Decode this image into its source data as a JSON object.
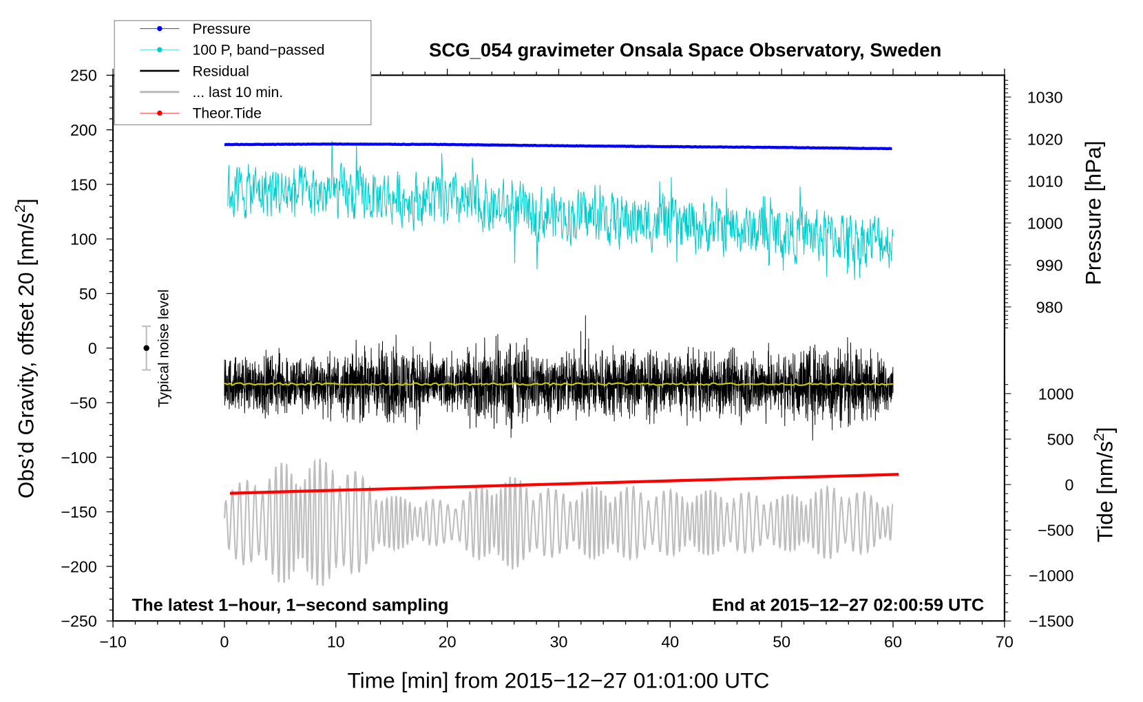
{
  "chart_data": {
    "type": "line",
    "title": "SCG_054 gravimeter Onsala Space Observatory, Sweden",
    "xlabel": "Time [min] from 2015−12−27 01:01:00 UTC",
    "ylabel": {
      "main": "Obs’d Gravity, offset 20 [nm/s",
      "sup": "2",
      "end": "]"
    },
    "y2label": "Pressure [hPa]",
    "y3label": {
      "main": "Tide [nm/s",
      "sup": "2",
      "end": "]"
    },
    "annotation_left": "The latest 1−hour, 1−second sampling",
    "annotation_right": "End at 2015−12−27 02:00:59 UTC",
    "noise_label": "Typical noise level",
    "noise_level": {
      "x": -7,
      "center": 0,
      "half_range": 20
    },
    "xlim": [
      -10,
      70
    ],
    "ylim": [
      -250,
      250
    ],
    "y2lim": [
      975,
      1035
    ],
    "y3lim": [
      -1500,
      1000
    ],
    "x_ticks": [
      "−10",
      "0",
      "10",
      "20",
      "30",
      "40",
      "50",
      "60",
      "70"
    ],
    "x_tick_values": [
      -10,
      0,
      10,
      20,
      30,
      40,
      50,
      60,
      70
    ],
    "y_ticks": [
      "250",
      "200",
      "150",
      "100",
      "50",
      "0",
      "−50",
      "−100",
      "−150",
      "−200",
      "−250"
    ],
    "y_tick_values": [
      250,
      200,
      150,
      100,
      50,
      0,
      -50,
      -100,
      -150,
      -200,
      -250
    ],
    "y2_ticks": [
      "1030",
      "1020",
      "1010",
      "1000",
      "990",
      "980"
    ],
    "y2_tick_values": [
      1030,
      1020,
      1010,
      1000,
      990,
      980
    ],
    "y3_ticks": [
      "1000",
      "500",
      "0",
      "−500",
      "−1000",
      "−1500"
    ],
    "y3_tick_values": [
      1000,
      500,
      0,
      -500,
      -1000,
      -1500
    ],
    "legend": {
      "placement": "top-left",
      "entries": [
        {
          "label": "Pressure",
          "color": "#0000ff",
          "marker": true
        },
        {
          "label": "100 P, band−passed",
          "color": "#00cccc",
          "marker": true
        },
        {
          "label": "Residual",
          "color": "#000000",
          "marker": false
        },
        {
          "label": "... last 10 min.",
          "color": "#bebebe",
          "marker": false
        },
        {
          "label": "Theor.Tide",
          "color": "#ff0000",
          "marker": true
        }
      ]
    },
    "series": [
      {
        "name": "Pressure",
        "axis": "y2",
        "color": "#0000ff",
        "x": [
          0,
          10,
          20,
          30,
          40,
          50,
          60
        ],
        "y": [
          1018.7,
          1018.8,
          1018.7,
          1018.4,
          1018.2,
          1018.0,
          1017.7
        ]
      },
      {
        "name": "100 P, band-passed",
        "axis": "y",
        "color": "#00cccc",
        "x": [
          0,
          10,
          20,
          30,
          40,
          50,
          60
        ],
        "y": [
          145,
          141,
          134,
          122,
          114,
          106,
          98
        ],
        "amplitude": 22
      },
      {
        "name": "Residual",
        "axis": "y",
        "color": "#000000",
        "x": [
          0,
          5,
          10,
          15,
          20,
          25,
          30,
          35,
          40,
          45,
          50,
          55,
          60
        ],
        "y": [
          -33,
          -33,
          -33,
          -33,
          -33,
          -33,
          -33,
          -33,
          -33,
          -33,
          -33,
          -33,
          -33
        ],
        "amplitude": [
          35,
          40,
          38,
          55,
          35,
          60,
          40,
          50,
          38,
          45,
          42,
          55,
          32
        ]
      },
      {
        "name": "Residual smoothed",
        "axis": "y",
        "color": "#cccc00",
        "x": [
          0,
          60
        ],
        "y": [
          -33,
          -33
        ]
      },
      {
        "name": "... last 10 min.",
        "axis": "y",
        "color": "#bebebe",
        "x": [
          0,
          5,
          10,
          15,
          20,
          25,
          30,
          35,
          40,
          45,
          50,
          55,
          60
        ],
        "y": [
          -160,
          -160,
          -160,
          -160,
          -160,
          -160,
          -160,
          -160,
          -160,
          -160,
          -160,
          -160,
          -160
        ],
        "amplitude": [
          30,
          55,
          60,
          25,
          20,
          45,
          30,
          35,
          30,
          30,
          25,
          35,
          20
        ]
      },
      {
        "name": "Theor.Tide",
        "axis": "y3",
        "color": "#ff0000",
        "x": [
          0.5,
          60.5
        ],
        "y": [
          -96,
          112
        ]
      }
    ]
  }
}
